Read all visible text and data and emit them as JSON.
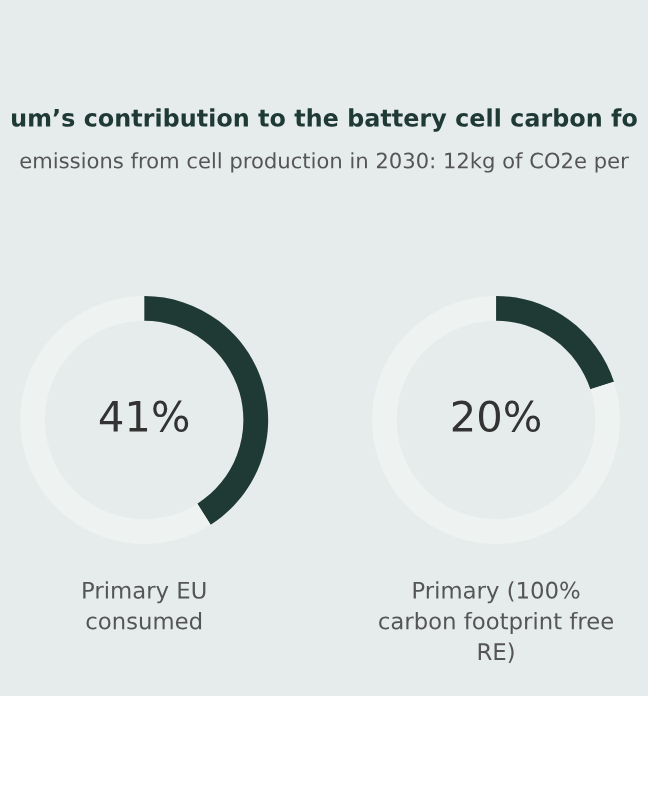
{
  "chart_data": [
    {
      "type": "donut",
      "title": "um’s contribution to the battery cell carbon fo",
      "subtitle": "emissions from cell production in 2030: 12kg of CO2e per",
      "xlabel": "Primary EU consumed",
      "categories": [
        null,
        null
      ],
      "values": [
        41,
        59
      ],
      "colors": [
        "#1f3a35",
        "#eef2f1"
      ],
      "value_labels": [
        "41%",
        null
      ]
    },
    {
      "type": "donut",
      "xlabel": "Primary (100% carbon footprint free RE)",
      "categories": [
        null,
        null
      ],
      "values": [
        20,
        80
      ],
      "colors": [
        "#1f3a35",
        "#eef2f1"
      ],
      "value_labels": [
        "20%",
        null
      ]
    }
  ]
}
